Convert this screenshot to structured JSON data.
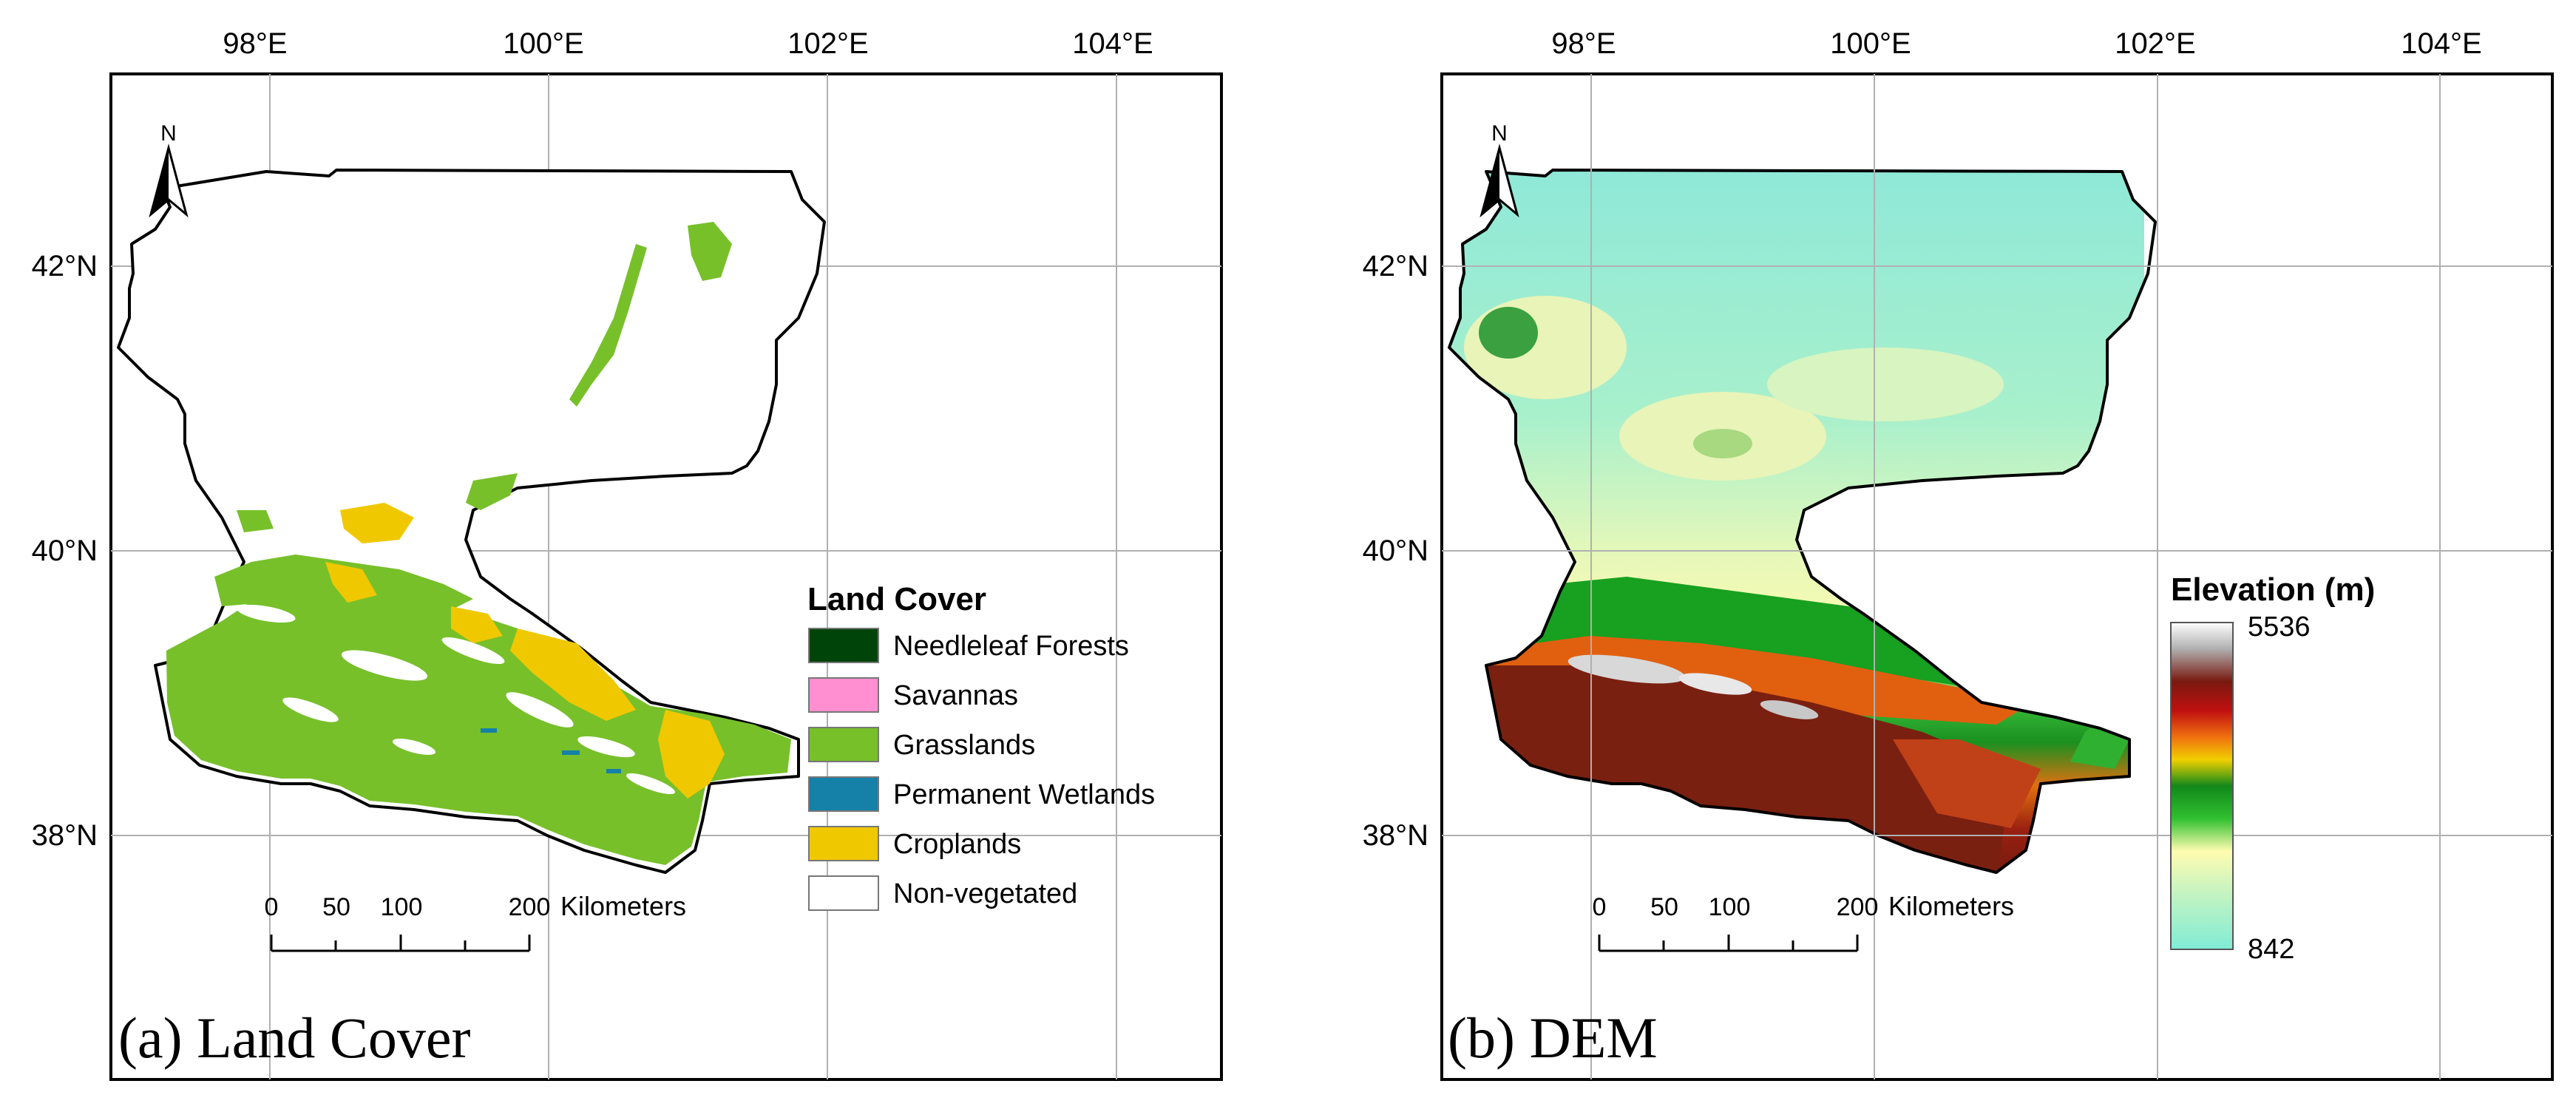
{
  "panels": [
    {
      "id": "a",
      "title": "(a) Land Cover",
      "lon_ticks": [
        "98°E",
        "100°E",
        "102°E",
        "104°E"
      ],
      "lat_ticks": [
        "42°N",
        "40°N",
        "38°N"
      ],
      "north_label": "N",
      "scale": {
        "ticks": [
          "0",
          "50",
          "100",
          "200"
        ],
        "unit": "Kilometers"
      },
      "legend": {
        "title": "Land Cover",
        "items": [
          {
            "label": "Needleleaf Forests",
            "color": "#00440a"
          },
          {
            "label": "Savannas",
            "color": "#ff8fd0"
          },
          {
            "label": "Grasslands",
            "color": "#77c02a"
          },
          {
            "label": "Permanent Wetlands",
            "color": "#1580a8"
          },
          {
            "label": "Croplands",
            "color": "#f0c800"
          },
          {
            "label": "Non-vegetated",
            "color": "#ffffff"
          }
        ]
      }
    },
    {
      "id": "b",
      "title": "(b) DEM",
      "lon_ticks": [
        "98°E",
        "100°E",
        "102°E",
        "104°E"
      ],
      "lat_ticks": [
        "42°N",
        "40°N",
        "38°N"
      ],
      "north_label": "N",
      "scale": {
        "ticks": [
          "0",
          "50",
          "100",
          "200"
        ],
        "unit": "Kilometers"
      },
      "colorbar": {
        "title": "Elevation (m)",
        "max": "5536",
        "min": "842",
        "colors": [
          "#ffffff",
          "#c8c8c8",
          "#8a4a30",
          "#7a1a10",
          "#d01010",
          "#f07010",
          "#f0d000",
          "#12881a",
          "#30c030",
          "#fffcb0",
          "#80ecd6"
        ]
      }
    }
  ]
}
